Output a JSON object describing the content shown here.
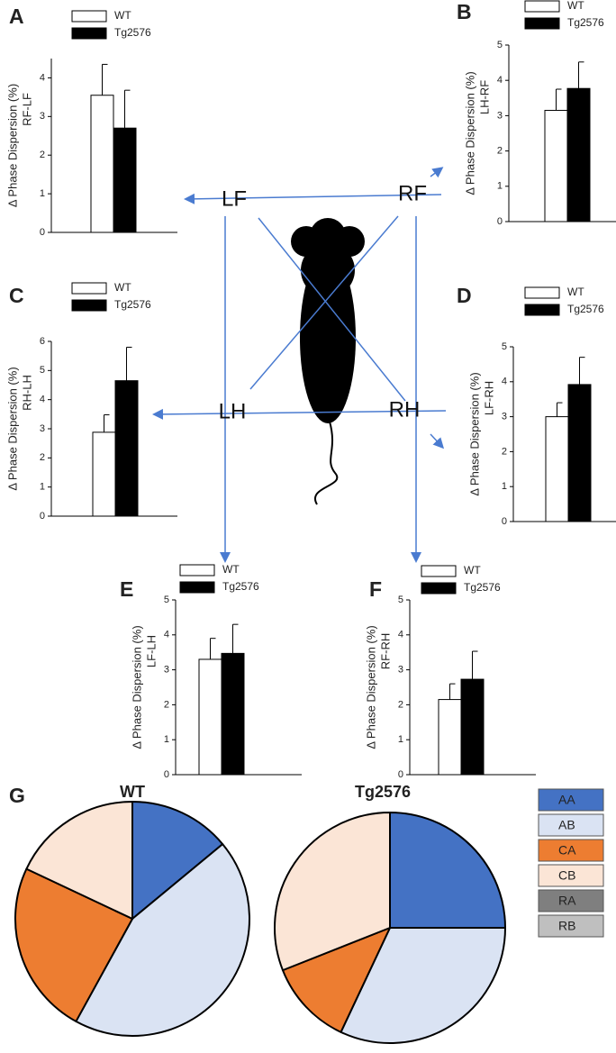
{
  "chart_data": [
    {
      "type": "bar",
      "panel": "A",
      "ylabel": "Δ Phase Dispersion (%)",
      "ylabel2": "RF-LF",
      "ylim": [
        0,
        4.5
      ],
      "yticks": [
        0,
        1,
        2,
        3,
        4
      ],
      "series": [
        {
          "name": "WT",
          "color": "#ffffff",
          "value": 3.55,
          "error": 0.8
        },
        {
          "name": "Tg2576",
          "color": "#000000",
          "value": 2.7,
          "error": 0.98
        }
      ]
    },
    {
      "type": "bar",
      "panel": "B",
      "ylabel": "Δ Phase Dispersion (%)",
      "ylabel2": "LH-RF",
      "ylim": [
        0,
        5
      ],
      "yticks": [
        0,
        1,
        2,
        3,
        4,
        5
      ],
      "series": [
        {
          "name": "WT",
          "color": "#ffffff",
          "value": 3.15,
          "error": 0.6
        },
        {
          "name": "Tg2576",
          "color": "#000000",
          "value": 3.77,
          "error": 0.75
        }
      ]
    },
    {
      "type": "bar",
      "panel": "C",
      "ylabel": "Δ Phase Dispersion (%)",
      "ylabel2": "RH-LH",
      "ylim": [
        0,
        6
      ],
      "yticks": [
        0,
        1,
        2,
        3,
        4,
        5,
        6
      ],
      "series": [
        {
          "name": "WT",
          "color": "#ffffff",
          "value": 2.88,
          "error": 0.6
        },
        {
          "name": "Tg2576",
          "color": "#000000",
          "value": 4.65,
          "error": 1.15
        }
      ]
    },
    {
      "type": "bar",
      "panel": "D",
      "ylabel": "Δ Phase Dispersion (%)",
      "ylabel2": "LF-RH",
      "ylim": [
        0,
        5
      ],
      "yticks": [
        0,
        1,
        2,
        3,
        4,
        5
      ],
      "series": [
        {
          "name": "WT",
          "color": "#ffffff",
          "value": 3.0,
          "error": 0.4
        },
        {
          "name": "Tg2576",
          "color": "#000000",
          "value": 3.92,
          "error": 0.78
        }
      ]
    },
    {
      "type": "bar",
      "panel": "E",
      "ylabel": "Δ Phase Dispersion (%)",
      "ylabel2": "LF-LH",
      "ylim": [
        0,
        5
      ],
      "yticks": [
        0,
        1,
        2,
        3,
        4,
        5
      ],
      "series": [
        {
          "name": "WT",
          "color": "#ffffff",
          "value": 3.3,
          "error": 0.6
        },
        {
          "name": "Tg2576",
          "color": "#000000",
          "value": 3.47,
          "error": 0.83
        }
      ]
    },
    {
      "type": "bar",
      "panel": "F",
      "ylabel": "Δ Phase Dispersion (%)",
      "ylabel2": "RF-RH",
      "ylim": [
        0,
        5
      ],
      "yticks": [
        0,
        1,
        2,
        3,
        4,
        5
      ],
      "series": [
        {
          "name": "WT",
          "color": "#ffffff",
          "value": 2.15,
          "error": 0.45
        },
        {
          "name": "Tg2576",
          "color": "#000000",
          "value": 2.73,
          "error": 0.8
        }
      ]
    },
    {
      "type": "pie",
      "panel": "G",
      "categories": [
        "AA",
        "AB",
        "CA",
        "CB",
        "RA",
        "RB"
      ],
      "colors": [
        "#4472c4",
        "#dae3f3",
        "#ed7d31",
        "#fbe5d6",
        "#7f7f7f",
        "#bfbfbf"
      ],
      "series": [
        {
          "name": "WT",
          "values": [
            14,
            44,
            24,
            18,
            0,
            0
          ]
        },
        {
          "name": "Tg2576",
          "values": [
            25,
            32,
            12,
            31,
            0,
            0
          ]
        }
      ]
    }
  ],
  "diagram": {
    "labels": [
      "LF",
      "RF",
      "LH",
      "RH"
    ]
  }
}
